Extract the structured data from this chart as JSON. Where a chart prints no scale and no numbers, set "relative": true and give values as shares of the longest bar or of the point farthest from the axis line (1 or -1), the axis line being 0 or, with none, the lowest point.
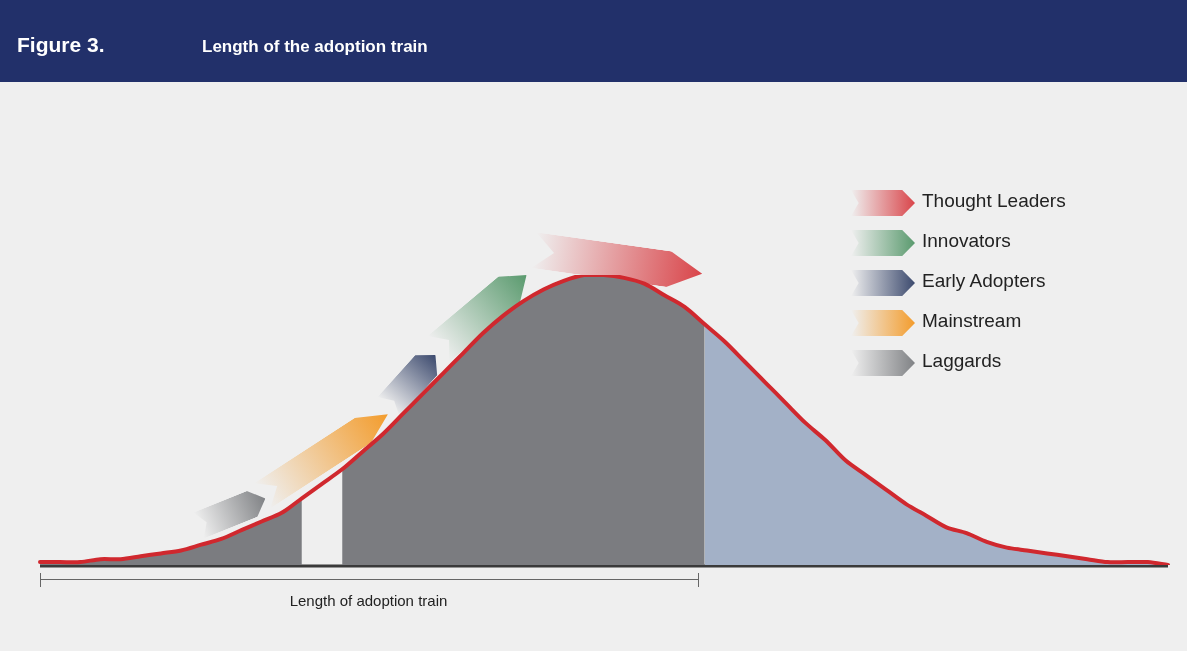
{
  "chart_data": {
    "type": "area",
    "title": "Figure 3.",
    "subtitle": "Length of the adoption train",
    "relative": true,
    "categories": [
      null,
      null,
      null,
      null,
      null,
      null,
      null,
      null,
      null,
      null,
      null,
      null,
      null,
      null,
      null,
      null,
      null,
      null,
      null,
      null,
      null,
      null,
      null,
      null,
      null,
      null,
      null,
      null,
      null,
      null,
      null,
      null,
      null,
      null,
      null,
      null,
      null,
      null,
      null,
      null,
      null,
      null,
      null,
      null,
      null,
      null,
      null,
      null,
      null,
      null,
      null,
      null,
      null,
      null,
      null,
      null,
      null
    ],
    "series": [
      {
        "color": "#7b7c80",
        "values": [
          0.01,
          0.01,
          0.01,
          0.02,
          0.02,
          0.03,
          0.04,
          0.05,
          0.07,
          0.09,
          0.12,
          0.15,
          0.18,
          0.23,
          null,
          0.33,
          0.39,
          0.45,
          0.52,
          0.59,
          0.66,
          0.73,
          0.8,
          0.86,
          0.91,
          0.95,
          0.98,
          1,
          1,
          0.99,
          0.97,
          0.93,
          0.89,
          0.83,
          null,
          null,
          null,
          null,
          null,
          null,
          null,
          null,
          null,
          null,
          null,
          null,
          null,
          null,
          null,
          null,
          null,
          null,
          null,
          null,
          null,
          null,
          null
        ]
      },
      {
        "color": "#a3b1c7",
        "values": [
          null,
          null,
          null,
          null,
          null,
          null,
          null,
          null,
          null,
          null,
          null,
          null,
          null,
          null,
          null,
          null,
          null,
          null,
          null,
          null,
          null,
          null,
          null,
          null,
          null,
          null,
          null,
          null,
          null,
          null,
          null,
          null,
          null,
          0.83,
          0.77,
          0.7,
          0.63,
          0.56,
          0.49,
          0.43,
          0.36,
          0.31,
          0.26,
          0.21,
          0.17,
          0.13,
          0.11,
          0.08,
          0.06,
          0.05,
          0.04,
          0.03,
          0.02,
          0.01,
          0.01,
          0.01,
          0
        ]
      },
      {
        "type": "line",
        "color": "#d0282e",
        "values": [
          0.01,
          0.01,
          0.01,
          0.02,
          0.02,
          0.03,
          0.04,
          0.05,
          0.07,
          0.09,
          0.12,
          0.15,
          0.18,
          0.23,
          0.28,
          0.33,
          0.39,
          0.45,
          0.52,
          0.59,
          0.66,
          0.73,
          0.8,
          0.86,
          0.91,
          0.95,
          0.98,
          1,
          1,
          0.99,
          0.97,
          0.93,
          0.89,
          0.83,
          0.77,
          0.7,
          0.63,
          0.56,
          0.49,
          0.43,
          0.36,
          0.31,
          0.26,
          0.21,
          0.17,
          0.13,
          0.11,
          0.08,
          0.06,
          0.05,
          0.04,
          0.03,
          0.02,
          0.01,
          0.01,
          0.01,
          0
        ]
      }
    ],
    "annotations": [
      "Thought Leaders",
      "Innovators",
      "Early Adopters",
      "Mainstream",
      "Laggards",
      "Length of adoption train"
    ]
  }
}
